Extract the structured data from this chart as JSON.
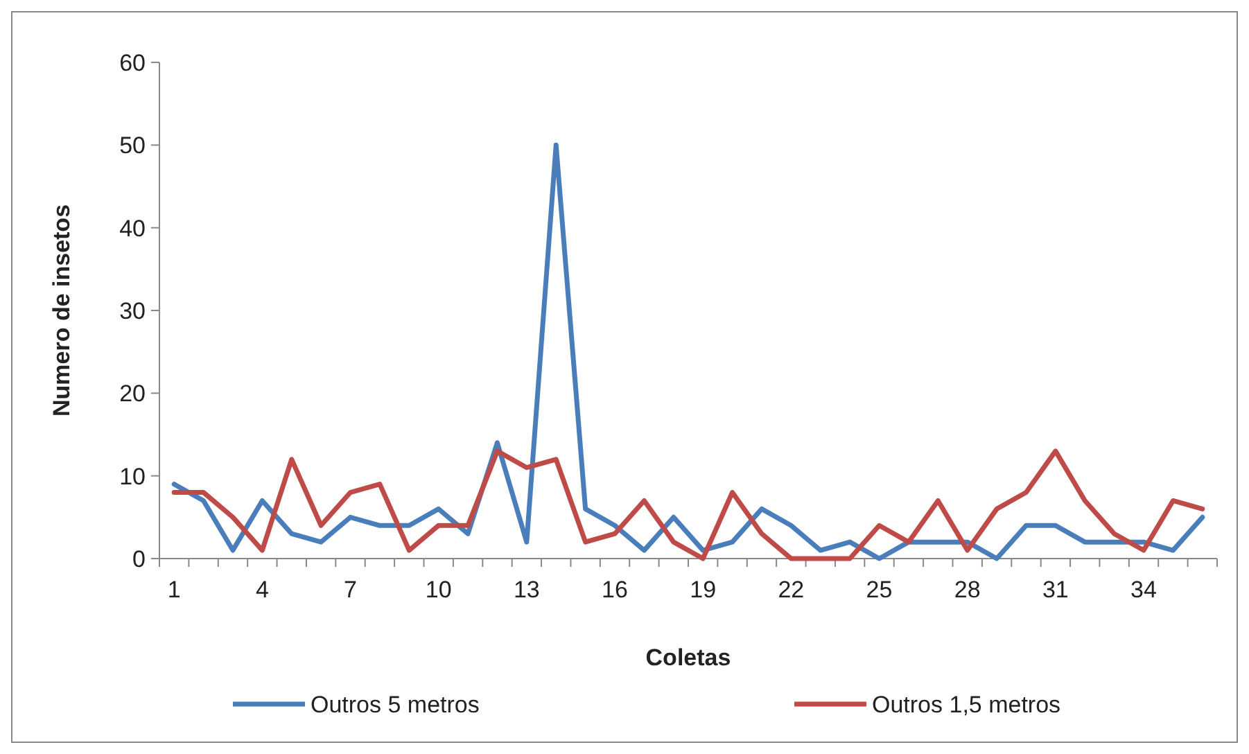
{
  "chart_data": {
    "type": "line",
    "xlabel": "Coletas",
    "ylabel": "Numero de insetos",
    "categories": [
      "1",
      null,
      null,
      "4",
      null,
      null,
      "7",
      null,
      null,
      "10",
      null,
      null,
      "13",
      null,
      null,
      "16",
      null,
      null,
      "19",
      null,
      null,
      "22",
      null,
      null,
      "25",
      null,
      null,
      "28",
      null,
      null,
      "31",
      null,
      null,
      "34",
      null,
      null
    ],
    "series": [
      {
        "name": "Outros 5 metros",
        "color": "#4a7ebb",
        "values": [
          9,
          7,
          1,
          7,
          3,
          2,
          5,
          4,
          4,
          6,
          3,
          14,
          2,
          50,
          6,
          4,
          1,
          5,
          1,
          2,
          6,
          4,
          1,
          2,
          0,
          2,
          2,
          2,
          0,
          4,
          4,
          2,
          2,
          2,
          1,
          5
        ]
      },
      {
        "name": "Outros 1,5 metros",
        "color": "#be4b48",
        "values": [
          8,
          8,
          5,
          1,
          12,
          4,
          8,
          9,
          1,
          4,
          4,
          13,
          11,
          12,
          2,
          3,
          7,
          2,
          0,
          8,
          3,
          0,
          0,
          0,
          4,
          2,
          7,
          1,
          6,
          8,
          13,
          7,
          3,
          1,
          7,
          6
        ]
      }
    ],
    "ylim": [
      0,
      60
    ],
    "yticks": [
      0,
      10,
      20,
      30,
      40,
      50,
      60
    ],
    "grid": false,
    "legend": "bottom",
    "marker": "none",
    "line_style": "solid"
  }
}
